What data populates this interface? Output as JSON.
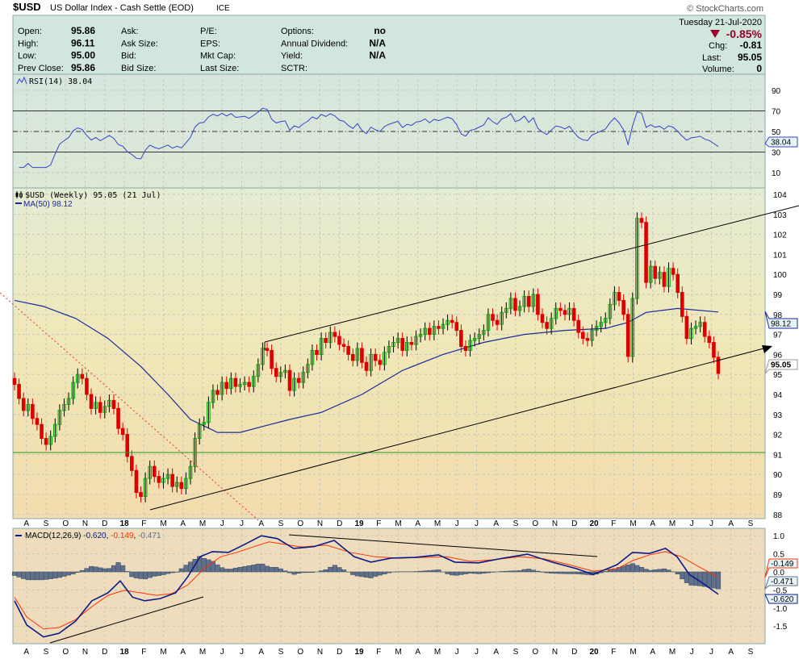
{
  "header": {
    "symbol": "$USD",
    "name": "US Dollar Index - Cash Settle (EOD)",
    "exchange": "ICE",
    "watermark": "© StockCharts.com"
  },
  "quote": {
    "columns": [
      [
        [
          "Open:",
          "95.86"
        ],
        [
          "High:",
          "96.11"
        ],
        [
          "Low:",
          "95.00"
        ],
        [
          "Prev Close:",
          "95.86"
        ]
      ],
      [
        [
          "Ask:",
          ""
        ],
        [
          "Ask Size:",
          ""
        ],
        [
          "Bid:",
          ""
        ],
        [
          "Bid Size:",
          ""
        ]
      ],
      [
        [
          "P/E:",
          ""
        ],
        [
          "EPS:",
          ""
        ],
        [
          "Mkt Cap:",
          ""
        ],
        [
          "Last Size:",
          ""
        ]
      ],
      [
        [
          "Options:",
          "no"
        ],
        [
          "Annual Dividend:",
          "N/A"
        ],
        [
          "Yield:",
          "N/A"
        ],
        [
          "SCTR:",
          ""
        ]
      ]
    ],
    "date": "Tuesday  21-Jul-2020",
    "change_pct": "-0.85%",
    "chg_label": "Chg:",
    "chg": "-0.81",
    "last_label": "Last:",
    "last": "95.05",
    "volume_label": "Volume:",
    "volume": "0",
    "down_color": "#99002e"
  },
  "chart_data": [
    {
      "type": "line",
      "title": "RSI(14) 38.04",
      "current": "38.04",
      "levels": [
        70,
        50,
        30
      ],
      "yticks": [
        "90",
        "70",
        "50",
        "30",
        "10"
      ],
      "ylim": [
        0,
        100
      ],
      "color": "#3344cc"
    },
    {
      "type": "candlestick",
      "title": "$USD (Weekly) 95.05 (21 Jul)",
      "ma_label": "MA(50) 98.12",
      "interval": "weekly",
      "first_date": "2017-07-24",
      "last_date": "2020-07-20",
      "closes": [
        94.5,
        93.8,
        93.2,
        93.5,
        92.8,
        92.5,
        91.8,
        91.5,
        91.9,
        92.5,
        93.2,
        93.5,
        93.8,
        94.6,
        95.0,
        94.8,
        94.0,
        93.3,
        93.6,
        93.1,
        93.4,
        93.7,
        93.3,
        92.3,
        92.0,
        90.9,
        90.2,
        89.1,
        88.9,
        89.8,
        90.4,
        89.9,
        89.6,
        89.8,
        90.0,
        89.4,
        89.6,
        89.3,
        89.8,
        90.4,
        91.8,
        92.5,
        92.6,
        93.6,
        94.2,
        94.0,
        94.6,
        94.3,
        94.8,
        94.4,
        94.5,
        94.6,
        94.4,
        94.9,
        95.5,
        96.3,
        96.2,
        95.3,
        94.9,
        95.1,
        95.2,
        94.2,
        94.8,
        94.6,
        95.1,
        95.5,
        96.2,
        96.0,
        96.8,
        96.6,
        97.1,
        96.9,
        96.5,
        96.4,
        96.0,
        95.7,
        96.3,
        95.6,
        95.2,
        96.0,
        95.7,
        95.5,
        96.1,
        96.4,
        96.6,
        96.8,
        96.2,
        96.6,
        96.5,
        96.9,
        97.0,
        97.3,
        97.0,
        97.4,
        97.3,
        97.5,
        97.7,
        97.6,
        97.2,
        96.4,
        96.2,
        96.7,
        96.8,
        97.0,
        97.2,
        98.0,
        97.7,
        97.5,
        98.1,
        98.3,
        98.8,
        98.2,
        98.4,
        98.9,
        98.4,
        99.0,
        98.0,
        97.6,
        97.3,
        97.8,
        98.3,
        98.2,
        98.0,
        98.3,
        97.7,
        97.1,
        96.8,
        96.7,
        97.2,
        97.4,
        97.6,
        97.8,
        98.5,
        99.1,
        98.7,
        98.0,
        95.9,
        98.8,
        102.8,
        102.6,
        99.6,
        100.4,
        99.8,
        100.1,
        99.4,
        100.3,
        100.0,
        99.1,
        97.9,
        96.8,
        97.3,
        97.4,
        97.6,
        96.9,
        96.6,
        95.86,
        95.05
      ],
      "ma50": [
        [
          "2017-07-24",
          98.7
        ],
        [
          "2017-09-07",
          98.4
        ],
        [
          "2017-10-27",
          97.8
        ],
        [
          "2017-12-16",
          96.8
        ],
        [
          "2018-02-05",
          95.4
        ],
        [
          "2018-03-19",
          94.0
        ],
        [
          "2018-04-23",
          92.75
        ],
        [
          "2018-06-04",
          92.1
        ],
        [
          "2018-07-09",
          92.1
        ],
        [
          "2018-08-13",
          92.4
        ],
        [
          "2018-09-24",
          92.75
        ],
        [
          "2018-11-12",
          93.1
        ],
        [
          "2019-01-14",
          94.0
        ],
        [
          "2019-03-18",
          95.2
        ],
        [
          "2019-05-20",
          96.0
        ],
        [
          "2019-07-22",
          96.6
        ],
        [
          "2019-09-23",
          97.0
        ],
        [
          "2019-11-25",
          97.2
        ],
        [
          "2020-01-27",
          97.3
        ],
        [
          "2020-03-02",
          97.6
        ],
        [
          "2020-03-30",
          98.1
        ],
        [
          "2020-05-18",
          98.3
        ],
        [
          "2020-07-20",
          98.12
        ]
      ],
      "ma_current": "98.12",
      "last": "95.05",
      "yticks": [
        "104",
        "103",
        "102",
        "101",
        "100",
        "99",
        "98",
        "97",
        "96",
        "95",
        "94",
        "93",
        "92",
        "91",
        "90",
        "89",
        "88"
      ],
      "ylim": [
        88,
        104
      ],
      "up_color": "#00aa00",
      "down_color": "#dd0000",
      "ma_color": "#1a2a9a"
    },
    {
      "type": "line",
      "title": "MACD(12,26,9)",
      "values_text": [
        "-0.620",
        "-0.149",
        "-0.471"
      ],
      "macd": [
        [
          "2017-07-24",
          -0.8
        ],
        [
          "2017-08-12",
          -1.47
        ],
        [
          "2017-09-07",
          -1.8
        ],
        [
          "2017-10-01",
          -1.7
        ],
        [
          "2017-10-27",
          -1.36
        ],
        [
          "2017-11-21",
          -0.8
        ],
        [
          "2017-12-16",
          -0.58
        ],
        [
          "2018-01-04",
          -0.25
        ],
        [
          "2018-01-23",
          -0.7
        ],
        [
          "2018-02-11",
          -0.8
        ],
        [
          "2018-03-07",
          -0.74
        ],
        [
          "2018-03-31",
          -0.58
        ],
        [
          "2018-04-19",
          -0.13
        ],
        [
          "2018-05-08",
          0.42
        ],
        [
          "2018-05-27",
          0.56
        ],
        [
          "2018-06-21",
          0.54
        ],
        [
          "2018-07-16",
          0.76
        ],
        [
          "2018-08-11",
          1.0
        ],
        [
          "2018-09-05",
          0.92
        ],
        [
          "2018-09-30",
          0.65
        ],
        [
          "2018-11-01",
          0.7
        ],
        [
          "2018-12-02",
          0.87
        ],
        [
          "2019-01-02",
          0.42
        ],
        [
          "2019-01-28",
          0.27
        ],
        [
          "2019-02-28",
          0.38
        ],
        [
          "2019-04-06",
          0.4
        ],
        [
          "2019-05-13",
          0.47
        ],
        [
          "2019-06-07",
          0.27
        ],
        [
          "2019-07-14",
          0.25
        ],
        [
          "2019-08-21",
          0.38
        ],
        [
          "2019-09-28",
          0.49
        ],
        [
          "2019-11-05",
          0.27
        ],
        [
          "2019-12-13",
          0.09
        ],
        [
          "2020-01-08",
          -0.07
        ],
        [
          "2020-02-14",
          0.2
        ],
        [
          "2020-03-09",
          0.54
        ],
        [
          "2020-04-04",
          0.51
        ],
        [
          "2020-04-29",
          0.65
        ],
        [
          "2020-05-17",
          0.42
        ],
        [
          "2020-06-05",
          -0.07
        ],
        [
          "2020-06-24",
          -0.29
        ],
        [
          "2020-07-20",
          -0.62
        ]
      ],
      "signal": [
        [
          "2017-07-24",
          -0.7
        ],
        [
          "2017-08-12",
          -1.25
        ],
        [
          "2017-09-07",
          -1.58
        ],
        [
          "2017-10-01",
          -1.54
        ],
        [
          "2017-10-27",
          -1.32
        ],
        [
          "2017-11-21",
          -0.96
        ],
        [
          "2017-12-16",
          -0.65
        ],
        [
          "2018-01-10",
          -0.51
        ],
        [
          "2018-02-05",
          -0.58
        ],
        [
          "2018-03-01",
          -0.65
        ],
        [
          "2018-03-25",
          -0.6
        ],
        [
          "2018-04-19",
          -0.36
        ],
        [
          "2018-05-14",
          0.09
        ],
        [
          "2018-06-09",
          0.42
        ],
        [
          "2018-07-04",
          0.54
        ],
        [
          "2018-07-29",
          0.69
        ],
        [
          "2018-08-23",
          0.83
        ],
        [
          "2018-09-17",
          0.76
        ],
        [
          "2018-10-12",
          0.69
        ],
        [
          "2018-11-20",
          0.74
        ],
        [
          "2018-12-27",
          0.54
        ],
        [
          "2019-02-03",
          0.42
        ],
        [
          "2019-03-11",
          0.38
        ],
        [
          "2019-04-18",
          0.4
        ],
        [
          "2019-05-25",
          0.42
        ],
        [
          "2019-07-02",
          0.29
        ],
        [
          "2019-08-09",
          0.34
        ],
        [
          "2019-09-16",
          0.42
        ],
        [
          "2019-10-24",
          0.36
        ],
        [
          "2019-12-01",
          0.2
        ],
        [
          "2020-01-08",
          0.02
        ],
        [
          "2020-02-14",
          0.09
        ],
        [
          "2020-03-09",
          0.31
        ],
        [
          "2020-04-04",
          0.47
        ],
        [
          "2020-04-29",
          0.56
        ],
        [
          "2020-05-24",
          0.42
        ],
        [
          "2020-06-18",
          0.16
        ],
        [
          "2020-07-20",
          -0.149
        ]
      ],
      "yticks": [
        "1.0",
        "0.5",
        "0.0",
        "-0.5",
        "-1.0",
        "-1.5"
      ],
      "ylim": [
        -2,
        1.2
      ],
      "macd_color": "#0a1a8a",
      "signal_color": "#ff3300",
      "hist_color": "#60708a"
    }
  ],
  "months": [
    "A",
    "S",
    "O",
    "N",
    "D",
    "18",
    "F",
    "M",
    "A",
    "M",
    "J",
    "J",
    "A",
    "S",
    "O",
    "N",
    "D",
    "19",
    "F",
    "M",
    "A",
    "M",
    "J",
    "J",
    "A",
    "S",
    "O",
    "N",
    "D",
    "20",
    "F",
    "M",
    "A",
    "M",
    "J",
    "J",
    "A",
    "S"
  ]
}
